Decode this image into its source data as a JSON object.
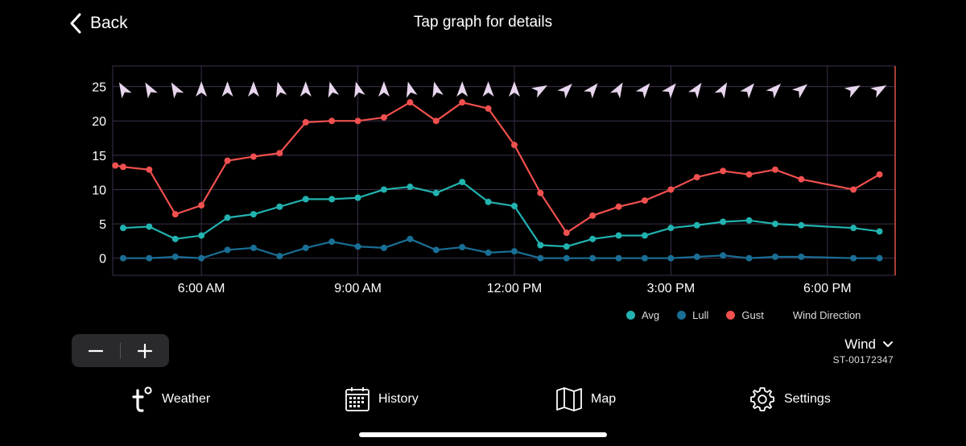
{
  "header": {
    "back_label": "Back",
    "title": "Tap graph for details"
  },
  "colors": {
    "avg": "#22b3b0",
    "lull": "#1a6f96",
    "gust": "#f0504f",
    "arrow": "#e7d6ee",
    "grid": "#3d2f4a",
    "now_line": "#e0504c"
  },
  "chart_data": {
    "type": "line",
    "x_unit": "hours (time of day)",
    "xlim": [
      4.3,
      19.3
    ],
    "ylim": [
      -2.5,
      28
    ],
    "y_ticks": [
      0,
      5,
      10,
      15,
      20,
      25
    ],
    "x_ticks": [
      {
        "value": 6,
        "label": "6:00 AM"
      },
      {
        "value": 9,
        "label": "9:00 AM"
      },
      {
        "value": 12,
        "label": "12:00 PM"
      },
      {
        "value": 15,
        "label": "3:00 PM"
      },
      {
        "value": 18,
        "label": "6:00 PM"
      }
    ],
    "grid": true,
    "x": [
      4.35,
      4.5,
      5.0,
      5.5,
      6.0,
      6.5,
      7.0,
      7.5,
      8.0,
      8.5,
      9.0,
      9.5,
      10.0,
      10.5,
      11.0,
      11.5,
      12.0,
      12.5,
      13.0,
      13.5,
      14.0,
      14.5,
      15.0,
      15.5,
      16.0,
      16.5,
      17.0,
      17.5,
      18.5,
      19.0
    ],
    "series": [
      {
        "name": "Avg",
        "color_key": "avg",
        "values": [
          null,
          4.4,
          4.6,
          2.8,
          3.3,
          5.9,
          6.4,
          7.5,
          8.6,
          8.6,
          8.8,
          10.0,
          10.4,
          9.5,
          11.1,
          8.2,
          7.6,
          1.9,
          1.7,
          2.8,
          3.3,
          3.3,
          4.4,
          4.8,
          5.3,
          5.5,
          5.0,
          4.8,
          4.4,
          3.9
        ]
      },
      {
        "name": "Lull",
        "color_key": "lull",
        "values": [
          null,
          0.0,
          0.0,
          0.2,
          0.0,
          1.2,
          1.5,
          0.3,
          1.5,
          2.4,
          1.7,
          1.5,
          2.8,
          1.2,
          1.6,
          0.8,
          1.0,
          0.0,
          0.0,
          0.0,
          0.0,
          0.0,
          0.0,
          0.2,
          0.4,
          0.0,
          0.2,
          0.2,
          0.0,
          0.0
        ]
      },
      {
        "name": "Gust",
        "color_key": "gust",
        "values": [
          13.5,
          13.3,
          12.9,
          6.4,
          7.7,
          14.2,
          14.8,
          15.3,
          19.8,
          20.0,
          20.0,
          20.5,
          22.7,
          20.0,
          22.7,
          21.8,
          16.5,
          9.5,
          3.7,
          6.2,
          7.5,
          8.4,
          10.0,
          11.8,
          12.7,
          12.2,
          12.9,
          11.5,
          10.0,
          12.2
        ]
      }
    ],
    "wind_direction": {
      "name": "Wind Direction",
      "y_value": 24.6,
      "points": [
        {
          "x": 4.5,
          "deg": 330
        },
        {
          "x": 5.0,
          "deg": 330
        },
        {
          "x": 5.5,
          "deg": 330
        },
        {
          "x": 6.0,
          "deg": 0
        },
        {
          "x": 6.5,
          "deg": 0
        },
        {
          "x": 7.0,
          "deg": 0
        },
        {
          "x": 7.5,
          "deg": 345
        },
        {
          "x": 8.0,
          "deg": 0
        },
        {
          "x": 8.5,
          "deg": 345
        },
        {
          "x": 9.0,
          "deg": 345
        },
        {
          "x": 9.5,
          "deg": 0
        },
        {
          "x": 10.0,
          "deg": 345
        },
        {
          "x": 10.5,
          "deg": 345
        },
        {
          "x": 11.0,
          "deg": 0
        },
        {
          "x": 11.5,
          "deg": 0
        },
        {
          "x": 12.0,
          "deg": 0
        },
        {
          "x": 12.5,
          "deg": 60
        },
        {
          "x": 13.0,
          "deg": 45
        },
        {
          "x": 13.5,
          "deg": 40
        },
        {
          "x": 14.0,
          "deg": 30
        },
        {
          "x": 14.5,
          "deg": 40
        },
        {
          "x": 15.0,
          "deg": 40
        },
        {
          "x": 15.5,
          "deg": 35
        },
        {
          "x": 16.0,
          "deg": 30
        },
        {
          "x": 16.5,
          "deg": 40
        },
        {
          "x": 17.0,
          "deg": 45
        },
        {
          "x": 17.5,
          "deg": 50
        },
        {
          "x": 18.5,
          "deg": 60
        },
        {
          "x": 19.0,
          "deg": 60
        }
      ]
    },
    "legend": {
      "position": "bottom-right",
      "items": [
        "Avg",
        "Lull",
        "Gust",
        "Wind Direction"
      ]
    }
  },
  "zoom": {
    "minus_symbol": "−",
    "plus_symbol": "+"
  },
  "sensor_selector": {
    "selected": "Wind",
    "station_id": "ST-00172347"
  },
  "bottom_nav": {
    "items": [
      {
        "label": "Weather",
        "icon": "tempest-logo-icon"
      },
      {
        "label": "History",
        "icon": "calendar-icon"
      },
      {
        "label": "Map",
        "icon": "map-icon"
      },
      {
        "label": "Settings",
        "icon": "gear-icon"
      }
    ]
  }
}
